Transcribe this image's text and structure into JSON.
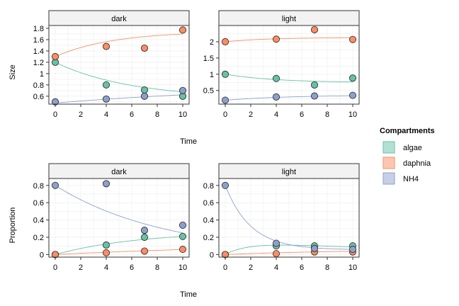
{
  "legend": {
    "title": "Compartments",
    "items": [
      {
        "name": "algae",
        "color": "#66c2a5"
      },
      {
        "name": "daphnia",
        "color": "#fc8d62"
      },
      {
        "name": "NH4",
        "color": "#8da0cb"
      }
    ]
  },
  "chart_data": [
    {
      "type": "scatter",
      "facet": "dark",
      "xlabel": "Time",
      "ylabel": "Size",
      "xlim": [
        -0.5,
        10.5
      ],
      "ylim": [
        0.46,
        1.85
      ],
      "xticks": [
        0,
        2,
        4,
        6,
        8,
        10
      ],
      "yticks": [
        0.6,
        0.8,
        1,
        1.2,
        1.4,
        1.6,
        1.8
      ],
      "yticklabels": [
        "0.6",
        "0.8",
        "1",
        "1.2",
        "1.4",
        "1.6",
        "1.8"
      ],
      "grid": true,
      "series": [
        {
          "name": "algae",
          "color": "#66c2a5",
          "points": [
            [
              0,
              1.2
            ],
            [
              4,
              0.8
            ],
            [
              7,
              0.71
            ],
            [
              10,
              0.6
            ]
          ],
          "curve": {
            "a": 0.56,
            "b": 0.64,
            "k": 0.17
          }
        },
        {
          "name": "daphnia",
          "color": "#fc8d62",
          "points": [
            [
              0,
              1.3
            ],
            [
              4,
              1.48
            ],
            [
              7,
              1.45
            ],
            [
              10,
              1.77
            ]
          ],
          "curve": {
            "a": 1.75,
            "b": -0.45,
            "k": 0.22
          }
        },
        {
          "name": "NH4",
          "color": "#8da0cb",
          "points": [
            [
              0,
              0.5
            ],
            [
              4,
              0.55
            ],
            [
              7,
              0.6
            ],
            [
              10,
              0.7
            ]
          ],
          "curve": {
            "a": 0.85,
            "b": -0.37,
            "k": 0.05
          }
        }
      ]
    },
    {
      "type": "scatter",
      "facet": "light",
      "xlabel": "Time",
      "ylabel": "Size",
      "xlim": [
        -0.5,
        10.5
      ],
      "ylim": [
        0.08,
        2.5
      ],
      "xticks": [
        0,
        2,
        4,
        6,
        8,
        10
      ],
      "yticks": [
        0.5,
        1,
        1.5,
        2
      ],
      "yticklabels": [
        "0.5",
        "1",
        "1.5",
        "2"
      ],
      "grid": true,
      "series": [
        {
          "name": "algae",
          "color": "#66c2a5",
          "points": [
            [
              0,
              1.0
            ],
            [
              4,
              0.87
            ],
            [
              7,
              0.67
            ],
            [
              10,
              0.88
            ]
          ],
          "curve": {
            "a": 0.74,
            "b": 0.26,
            "k": 0.25
          }
        },
        {
          "name": "daphnia",
          "color": "#fc8d62",
          "points": [
            [
              0,
              2.0
            ],
            [
              4,
              2.08
            ],
            [
              7,
              2.37
            ],
            [
              10,
              2.07
            ]
          ],
          "curve": {
            "a": 2.13,
            "b": -0.13,
            "k": 0.3
          }
        },
        {
          "name": "NH4",
          "color": "#8da0cb",
          "points": [
            [
              0,
              0.2
            ],
            [
              4,
              0.3
            ],
            [
              7,
              0.33
            ],
            [
              10,
              0.35
            ]
          ],
          "curve": {
            "a": 0.36,
            "b": -0.16,
            "k": 0.2
          }
        }
      ]
    },
    {
      "type": "scatter",
      "facet": "dark",
      "xlabel": "Time",
      "ylabel": "Proportion",
      "xlim": [
        -0.5,
        10.5
      ],
      "ylim": [
        -0.03,
        0.88
      ],
      "xticks": [
        0,
        2,
        4,
        6,
        8,
        10
      ],
      "yticks": [
        0,
        0.2,
        0.4,
        0.6,
        0.8
      ],
      "yticklabels": [
        "0",
        "0.2",
        "0.4",
        "0.6",
        "0.8"
      ],
      "grid": true,
      "series": [
        {
          "name": "algae",
          "color": "#66c2a5",
          "points": [
            [
              0,
              0.0
            ],
            [
              4,
              0.11
            ],
            [
              7,
              0.2
            ],
            [
              10,
              0.21
            ]
          ],
          "curve": {
            "a": 0.27,
            "b": -0.27,
            "k": 0.15
          }
        },
        {
          "name": "daphnia",
          "color": "#fc8d62",
          "points": [
            [
              0,
              0.0
            ],
            [
              4,
              0.02
            ],
            [
              7,
              0.04
            ],
            [
              10,
              0.06
            ]
          ],
          "curve": {
            "a": 0.16,
            "b": -0.16,
            "k": 0.045
          }
        },
        {
          "name": "NH4",
          "color": "#8da0cb",
          "points": [
            [
              0,
              0.8
            ],
            [
              4,
              0.82
            ],
            [
              7,
              0.28
            ],
            [
              10,
              0.34
            ]
          ],
          "curve": {
            "a": 0.0,
            "b": 0.8,
            "k": 0.116
          }
        }
      ]
    },
    {
      "type": "scatter",
      "facet": "light",
      "xlabel": "Time",
      "ylabel": "Proportion",
      "xlim": [
        -0.5,
        10.5
      ],
      "ylim": [
        -0.03,
        0.88
      ],
      "xticks": [
        0,
        2,
        4,
        6,
        8,
        10
      ],
      "yticks": [
        0,
        0.2,
        0.4,
        0.6,
        0.8
      ],
      "yticklabels": [
        "0",
        "0.2",
        "0.4",
        "0.6",
        "0.8"
      ],
      "grid": true,
      "series": [
        {
          "name": "algae",
          "color": "#66c2a5",
          "points": [
            [
              0,
              0.0
            ],
            [
              4,
              0.1
            ],
            [
              7,
              0.1
            ],
            [
              10,
              0.1
            ]
          ],
          "curve": {
            "a": 0.07,
            "b": -0.07,
            "k": 1.0,
            "hump": 0.16
          }
        },
        {
          "name": "daphnia",
          "color": "#fc8d62",
          "points": [
            [
              0,
              0.0
            ],
            [
              4,
              0.01
            ],
            [
              7,
              0.03
            ],
            [
              10,
              0.03
            ]
          ],
          "curve": {
            "a": 0.06,
            "b": -0.06,
            "k": 0.1
          }
        },
        {
          "name": "NH4",
          "color": "#8da0cb",
          "points": [
            [
              0,
              0.8
            ],
            [
              4,
              0.13
            ],
            [
              7,
              0.07
            ],
            [
              10,
              0.06
            ]
          ],
          "curve": {
            "a": 0.055,
            "b": 0.745,
            "k": 0.5
          }
        }
      ]
    }
  ]
}
